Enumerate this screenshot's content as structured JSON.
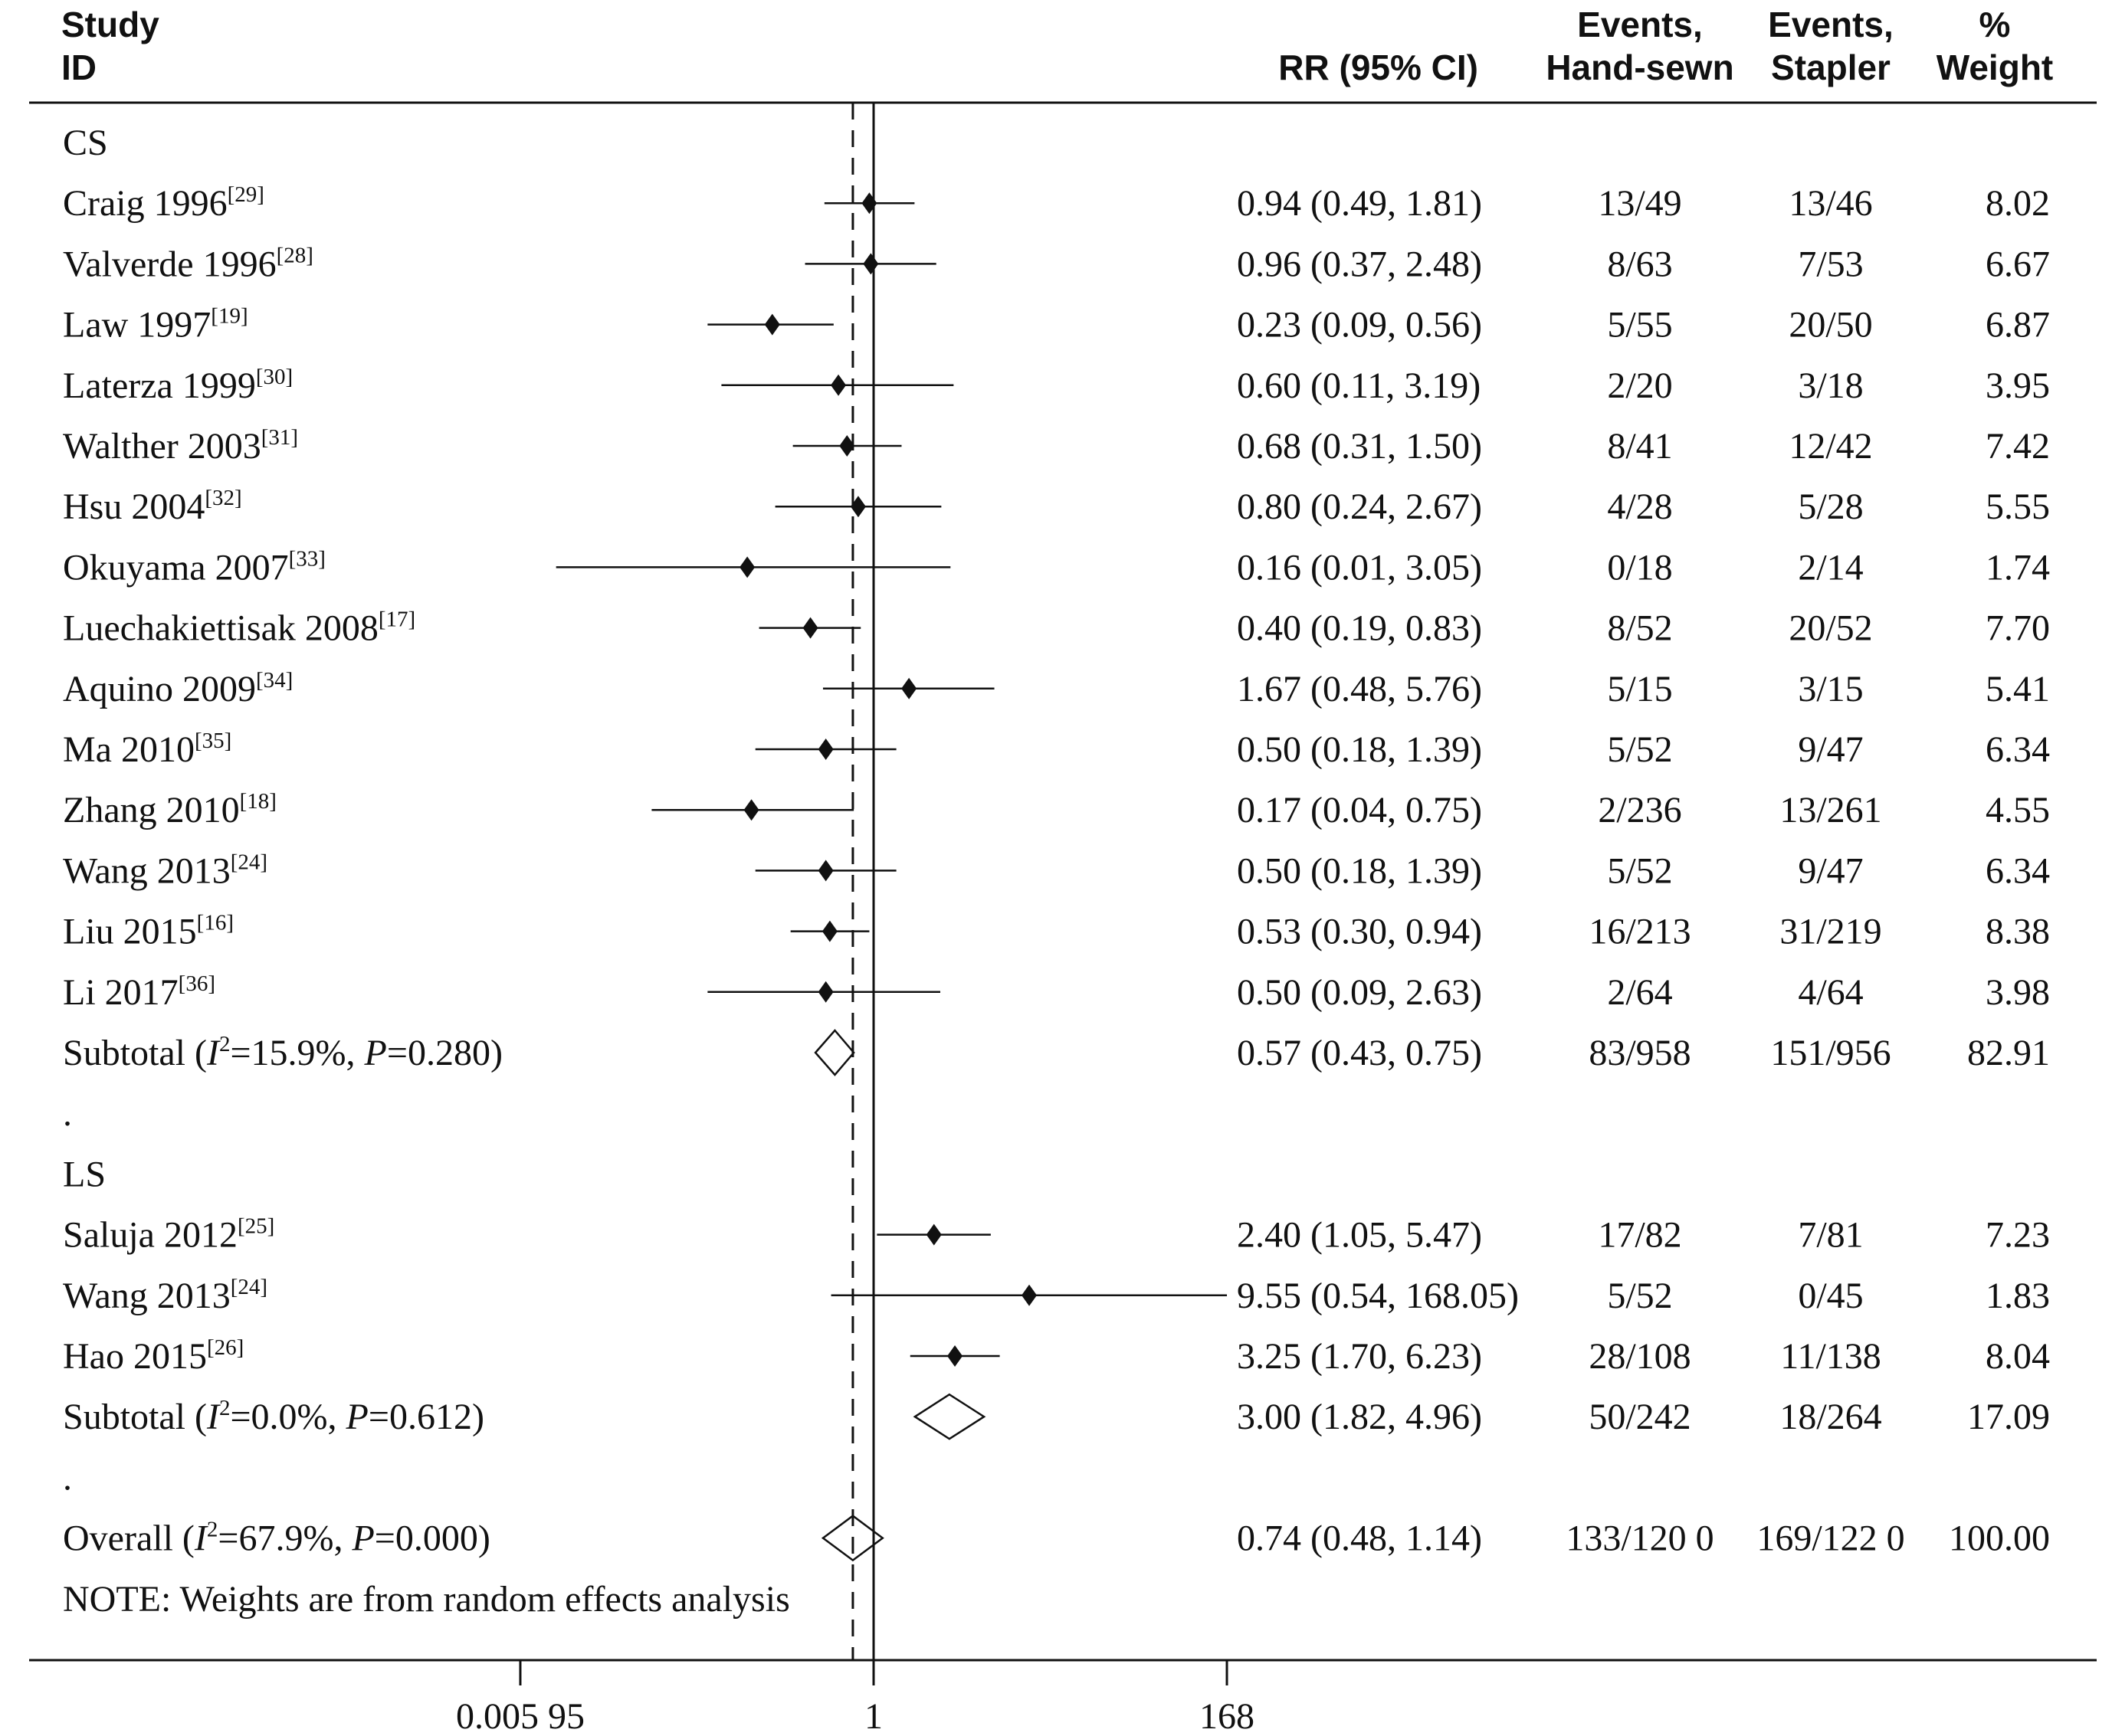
{
  "header": {
    "study_line1": "Study",
    "study_line2": "ID",
    "rr": "RR (95% CI)",
    "ev_hand_line1": "Events,",
    "ev_hand_line2": "Hand-sewn",
    "ev_stapler_line1": "Events,",
    "ev_stapler_line2": "Stapler",
    "weight_line1": "%",
    "weight_line2": "Weight"
  },
  "chart_data": {
    "type": "forest",
    "x_scale": "log",
    "x_ticks": [
      {
        "value": 0.00595,
        "label": "0.005 95"
      },
      {
        "value": 1,
        "label": "1"
      },
      {
        "value": 168,
        "label": "168"
      }
    ],
    "null_line": 1,
    "overall_line": 0.74,
    "rows": [
      {
        "kind": "group",
        "label": "CS"
      },
      {
        "kind": "study",
        "name": "Craig 1996",
        "ref": "[29]",
        "rr": 0.94,
        "lo": 0.49,
        "hi": 1.81,
        "ci_text": "0.94 (0.49, 1.81)",
        "ev_hand": "13/49",
        "ev_stapler": "13/46",
        "weight": "8.02"
      },
      {
        "kind": "study",
        "name": "Valverde 1996",
        "ref": "[28]",
        "rr": 0.96,
        "lo": 0.37,
        "hi": 2.48,
        "ci_text": "0.96 (0.37, 2.48)",
        "ev_hand": "8/63",
        "ev_stapler": "7/53",
        "weight": "6.67"
      },
      {
        "kind": "study",
        "name": "Law 1997",
        "ref": "[19]",
        "rr": 0.23,
        "lo": 0.09,
        "hi": 0.56,
        "ci_text": "0.23 (0.09, 0.56)",
        "ev_hand": "5/55",
        "ev_stapler": "20/50",
        "weight": "6.87"
      },
      {
        "kind": "study",
        "name": "Laterza 1999",
        "ref": "[30]",
        "rr": 0.6,
        "lo": 0.11,
        "hi": 3.19,
        "ci_text": "0.60 (0.11, 3.19)",
        "ev_hand": "2/20",
        "ev_stapler": "3/18",
        "weight": "3.95"
      },
      {
        "kind": "study",
        "name": "Walther 2003",
        "ref": "[31]",
        "rr": 0.68,
        "lo": 0.31,
        "hi": 1.5,
        "ci_text": "0.68 (0.31, 1.50)",
        "ev_hand": "8/41",
        "ev_stapler": "12/42",
        "weight": "7.42"
      },
      {
        "kind": "study",
        "name": "Hsu 2004",
        "ref": "[32]",
        "rr": 0.8,
        "lo": 0.24,
        "hi": 2.67,
        "ci_text": "0.80 (0.24, 2.67)",
        "ev_hand": "4/28",
        "ev_stapler": "5/28",
        "weight": "5.55"
      },
      {
        "kind": "study",
        "name": "Okuyama 2007",
        "ref": "[33]",
        "rr": 0.16,
        "lo": 0.01,
        "hi": 3.05,
        "ci_text": "0.16 (0.01, 3.05)",
        "ev_hand": "0/18",
        "ev_stapler": "2/14",
        "weight": "1.74"
      },
      {
        "kind": "study",
        "name": "Luechakiettisak 2008",
        "ref": "[17]",
        "rr": 0.4,
        "lo": 0.19,
        "hi": 0.83,
        "ci_text": "0.40 (0.19, 0.83)",
        "ev_hand": "8/52",
        "ev_stapler": "20/52",
        "weight": "7.70"
      },
      {
        "kind": "study",
        "name": "Aquino 2009",
        "ref": "[34]",
        "rr": 1.67,
        "lo": 0.48,
        "hi": 5.76,
        "ci_text": "1.67 (0.48, 5.76)",
        "ev_hand": "5/15",
        "ev_stapler": "3/15",
        "weight": "5.41"
      },
      {
        "kind": "study",
        "name": "Ma 2010",
        "ref": "[35]",
        "rr": 0.5,
        "lo": 0.18,
        "hi": 1.39,
        "ci_text": "0.50 (0.18, 1.39)",
        "ev_hand": "5/52",
        "ev_stapler": "9/47",
        "weight": "6.34"
      },
      {
        "kind": "study",
        "name": "Zhang 2010",
        "ref": "[18]",
        "rr": 0.17,
        "lo": 0.04,
        "hi": 0.75,
        "ci_text": "0.17 (0.04, 0.75)",
        "ev_hand": "2/236",
        "ev_stapler": "13/261",
        "weight": "4.55"
      },
      {
        "kind": "study",
        "name": "Wang 2013",
        "ref": "[24]",
        "rr": 0.5,
        "lo": 0.18,
        "hi": 1.39,
        "ci_text": "0.50 (0.18, 1.39)",
        "ev_hand": "5/52",
        "ev_stapler": "9/47",
        "weight": "6.34"
      },
      {
        "kind": "study",
        "name": "Liu 2015",
        "ref": "[16]",
        "rr": 0.53,
        "lo": 0.3,
        "hi": 0.94,
        "ci_text": "0.53 (0.30, 0.94)",
        "ev_hand": "16/213",
        "ev_stapler": "31/219",
        "weight": "8.38"
      },
      {
        "kind": "study",
        "name": "Li 2017",
        "ref": "[36]",
        "rr": 0.5,
        "lo": 0.09,
        "hi": 2.63,
        "ci_text": "0.50 (0.09, 2.63)",
        "ev_hand": "2/64",
        "ev_stapler": "4/64",
        "weight": "3.98"
      },
      {
        "kind": "subtotal",
        "label_pre": "Subtotal  (",
        "i2_letter": "I",
        "i2_sup": "2",
        "i2_value": "=15.9%, ",
        "p_letter": "P",
        "p_value": "=0.280)",
        "rr": 0.57,
        "lo": 0.43,
        "hi": 0.75,
        "ci_text": "0.57 (0.43, 0.75)",
        "ev_hand": "83/958",
        "ev_stapler": "151/956",
        "weight": "82.91"
      },
      {
        "kind": "dot",
        "label": "."
      },
      {
        "kind": "group",
        "label": "LS"
      },
      {
        "kind": "study",
        "name": "Saluja 2012",
        "ref": "[25]",
        "rr": 2.4,
        "lo": 1.05,
        "hi": 5.47,
        "ci_text": "2.40 (1.05, 5.47)",
        "ev_hand": "17/82",
        "ev_stapler": "7/81",
        "weight": "7.23"
      },
      {
        "kind": "study",
        "name": "Wang 2013",
        "ref": "[24]",
        "rr": 9.55,
        "lo": 0.54,
        "hi": 168.05,
        "ci_text": "9.55 (0.54, 168.05)",
        "ev_hand": "5/52",
        "ev_stapler": "0/45",
        "weight": "1.83"
      },
      {
        "kind": "study",
        "name": "Hao 2015",
        "ref": "[26]",
        "rr": 3.25,
        "lo": 1.7,
        "hi": 6.23,
        "ci_text": "3.25 (1.70, 6.23)",
        "ev_hand": "28/108",
        "ev_stapler": "11/138",
        "weight": "8.04"
      },
      {
        "kind": "subtotal",
        "label_pre": "Subtotal  (",
        "i2_letter": "I",
        "i2_sup": "2",
        "i2_value": "=0.0%, ",
        "p_letter": "P",
        "p_value": "=0.612)",
        "rr": 3.0,
        "lo": 1.82,
        "hi": 4.96,
        "ci_text": "3.00 (1.82, 4.96)",
        "ev_hand": "50/242",
        "ev_stapler": "18/264",
        "weight": "17.09"
      },
      {
        "kind": "dot",
        "label": "."
      },
      {
        "kind": "overall",
        "label_pre": "Overall  (",
        "i2_letter": "I",
        "i2_sup": "2",
        "i2_value": "=67.9%, ",
        "p_letter": "P",
        "p_value": "=0.000)",
        "rr": 0.74,
        "lo": 0.48,
        "hi": 1.14,
        "ci_text": "0.74 (0.48, 1.14)",
        "ev_hand": "133/120 0",
        "ev_stapler": "169/122 0",
        "weight": "100.00"
      },
      {
        "kind": "note",
        "label": "NOTE: Weights are from random effects analysis"
      }
    ]
  }
}
